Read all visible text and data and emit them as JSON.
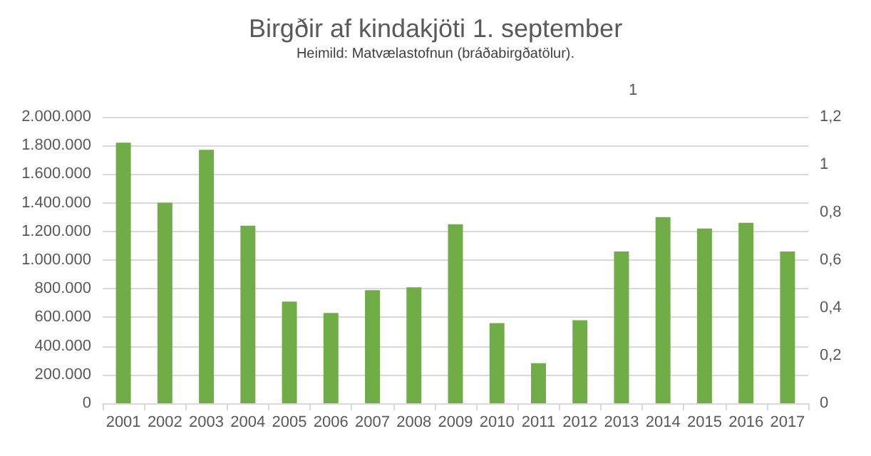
{
  "chart_data": {
    "type": "bar",
    "title": "Birgðir af kindakjöti 1. september",
    "subtitle": "Heimild: Matvælastofnun (bráðabirgðatölur).",
    "annotations": [
      "1"
    ],
    "categories": [
      "2001",
      "2002",
      "2003",
      "2004",
      "2005",
      "2006",
      "2007",
      "2008",
      "2009",
      "2010",
      "2011",
      "2012",
      "2013",
      "2014",
      "2015",
      "2016",
      "2017"
    ],
    "values": [
      1820000,
      1400000,
      1770000,
      1240000,
      710000,
      630000,
      790000,
      810000,
      1250000,
      560000,
      280000,
      580000,
      1060000,
      1300000,
      1220000,
      1260000,
      1060000
    ],
    "color": "#70ad47",
    "ylim": [
      0,
      2000000
    ],
    "yticks": [
      0,
      {
        "value": 200000,
        "label": "200.000"
      },
      {
        "value": 400000,
        "label": "400.000"
      },
      {
        "value": 600000,
        "label": "600.000"
      },
      {
        "value": 800000,
        "label": "800.000"
      },
      {
        "value": 1000000,
        "label": "1.000.000"
      },
      {
        "value": 1200000,
        "label": "1.200.000"
      },
      {
        "value": 1400000,
        "label": "1.400.000"
      },
      {
        "value": 1600000,
        "label": "1.600.000"
      },
      {
        "value": 1800000,
        "label": "1.800.000"
      },
      {
        "value": 2000000,
        "label": "2.000.000"
      }
    ],
    "y2lim": [
      0,
      1.2
    ],
    "y2ticks": [
      0,
      {
        "value": 0.2,
        "label": "0,2"
      },
      {
        "value": 0.4,
        "label": "0,4"
      },
      {
        "value": 0.6,
        "label": "0,6"
      },
      {
        "value": 0.8,
        "label": "0,8"
      },
      1,
      {
        "value": 1.2,
        "label": "1,2"
      }
    ],
    "grid": "y"
  }
}
